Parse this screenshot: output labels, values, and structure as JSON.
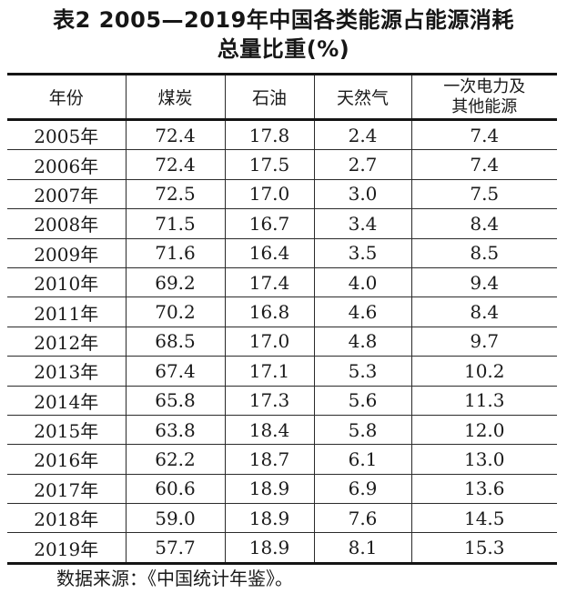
{
  "title": {
    "line1": "表2 2005—2019年中国各类能源占能源消耗",
    "line2": "总量比重(%)"
  },
  "table": {
    "headers": [
      "年份",
      "煤炭",
      "石油",
      "天然气"
    ],
    "last_header": {
      "line1": "一次电力及",
      "line2": "其他能源"
    },
    "rows": [
      [
        "2005年",
        "72.4",
        "17.8",
        "2.4",
        "7.4"
      ],
      [
        "2006年",
        "72.4",
        "17.5",
        "2.7",
        "7.4"
      ],
      [
        "2007年",
        "72.5",
        "17.0",
        "3.0",
        "7.5"
      ],
      [
        "2008年",
        "71.5",
        "16.7",
        "3.4",
        "8.4"
      ],
      [
        "2009年",
        "71.6",
        "16.4",
        "3.5",
        "8.5"
      ],
      [
        "2010年",
        "69.2",
        "17.4",
        "4.0",
        "9.4"
      ],
      [
        "2011年",
        "70.2",
        "16.8",
        "4.6",
        "8.4"
      ],
      [
        "2012年",
        "68.5",
        "17.0",
        "4.8",
        "9.7"
      ],
      [
        "2013年",
        "67.4",
        "17.1",
        "5.3",
        "10.2"
      ],
      [
        "2014年",
        "65.8",
        "17.3",
        "5.6",
        "11.3"
      ],
      [
        "2015年",
        "63.8",
        "18.4",
        "5.8",
        "12.0"
      ],
      [
        "2016年",
        "62.2",
        "18.7",
        "6.1",
        "13.0"
      ],
      [
        "2017年",
        "60.6",
        "18.9",
        "6.9",
        "13.6"
      ],
      [
        "2018年",
        "59.0",
        "18.9",
        "7.6",
        "14.5"
      ],
      [
        "2019年",
        "57.7",
        "18.9",
        "8.1",
        "15.3"
      ]
    ]
  },
  "source_note": "数据来源：《中国统计年鉴》。",
  "chart_data": {
    "type": "table",
    "title": "表2 2005—2019年中国各类能源占能源消耗总量比重(%)",
    "categories": [
      "2005",
      "2006",
      "2007",
      "2008",
      "2009",
      "2010",
      "2011",
      "2012",
      "2013",
      "2014",
      "2015",
      "2016",
      "2017",
      "2018",
      "2019"
    ],
    "series": [
      {
        "name": "煤炭",
        "values": [
          72.4,
          72.4,
          72.5,
          71.5,
          71.6,
          69.2,
          70.2,
          68.5,
          67.4,
          65.8,
          63.8,
          62.2,
          60.6,
          59.0,
          57.7
        ]
      },
      {
        "name": "石油",
        "values": [
          17.8,
          17.5,
          17.0,
          16.7,
          16.4,
          17.4,
          16.8,
          17.0,
          17.1,
          17.3,
          18.4,
          18.7,
          18.9,
          18.9,
          18.9
        ]
      },
      {
        "name": "天然气",
        "values": [
          2.4,
          2.7,
          3.0,
          3.4,
          3.5,
          4.0,
          4.6,
          4.8,
          5.3,
          5.6,
          5.8,
          6.1,
          6.9,
          7.6,
          8.1
        ]
      },
      {
        "name": "一次电力及其他能源",
        "values": [
          7.4,
          7.4,
          7.5,
          8.4,
          8.5,
          9.4,
          8.4,
          9.7,
          10.2,
          11.3,
          12.0,
          13.0,
          13.6,
          14.5,
          15.3
        ]
      }
    ],
    "source": "《中国统计年鉴》"
  },
  "colors": {
    "text": "#1a1a1a",
    "border_thick": "#151515",
    "border_thin": "#2b2b2b",
    "background": "#ffffff"
  }
}
